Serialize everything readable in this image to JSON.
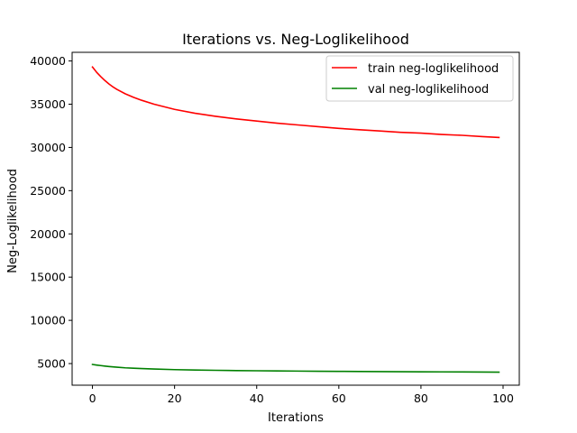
{
  "chart_data": {
    "type": "line",
    "title": "Iterations vs. Neg-Loglikelihood",
    "xlabel": "Iterations",
    "ylabel": "Neg-Loglikelihood",
    "xlim": [
      -4.95,
      103.95
    ],
    "ylim": [
      2500,
      41000
    ],
    "xticks": [
      0,
      20,
      40,
      60,
      80,
      100
    ],
    "yticks": [
      5000,
      10000,
      15000,
      20000,
      25000,
      30000,
      35000,
      40000
    ],
    "grid": false,
    "legend_position": "top-right",
    "x": [
      0,
      1,
      2,
      3,
      4,
      5,
      6,
      8,
      10,
      12,
      15,
      20,
      25,
      30,
      35,
      40,
      45,
      50,
      55,
      60,
      65,
      70,
      75,
      80,
      85,
      90,
      95,
      99
    ],
    "series": [
      {
        "name": "train neg-loglikelihood",
        "color": "#ff0000",
        "values": [
          39300,
          38700,
          38200,
          37750,
          37350,
          37000,
          36700,
          36200,
          35800,
          35450,
          35000,
          34400,
          33950,
          33600,
          33300,
          33050,
          32800,
          32600,
          32400,
          32200,
          32050,
          31900,
          31750,
          31650,
          31500,
          31400,
          31250,
          31150
        ]
      },
      {
        "name": "val neg-loglikelihood",
        "color": "#008000",
        "values": [
          4900,
          4830,
          4770,
          4710,
          4660,
          4620,
          4580,
          4510,
          4460,
          4420,
          4370,
          4300,
          4250,
          4220,
          4190,
          4170,
          4150,
          4130,
          4110,
          4100,
          4080,
          4070,
          4060,
          4050,
          4040,
          4030,
          4020,
          4010
        ]
      }
    ]
  }
}
